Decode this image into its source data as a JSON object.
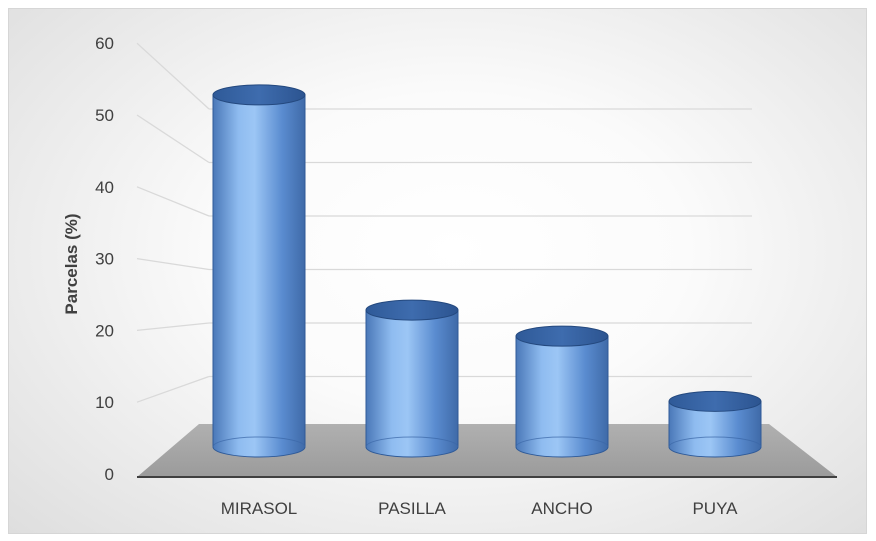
{
  "chart_data": {
    "type": "bar",
    "style": "3d-cylinder",
    "categories": [
      "MIRASOL",
      "PASILLA",
      "ANCHO",
      "PUYA"
    ],
    "series": [
      {
        "values": [
          54,
          21,
          17,
          7
        ],
        "color": "#5b8fd1"
      }
    ],
    "ylabel": "Parcelas (%)",
    "xlabel": "",
    "ylim": [
      0,
      60
    ],
    "yticks": [
      0,
      10,
      20,
      30,
      40,
      50,
      60
    ],
    "grid": true,
    "legend": "none",
    "floor_color": "#a6a6a6"
  }
}
